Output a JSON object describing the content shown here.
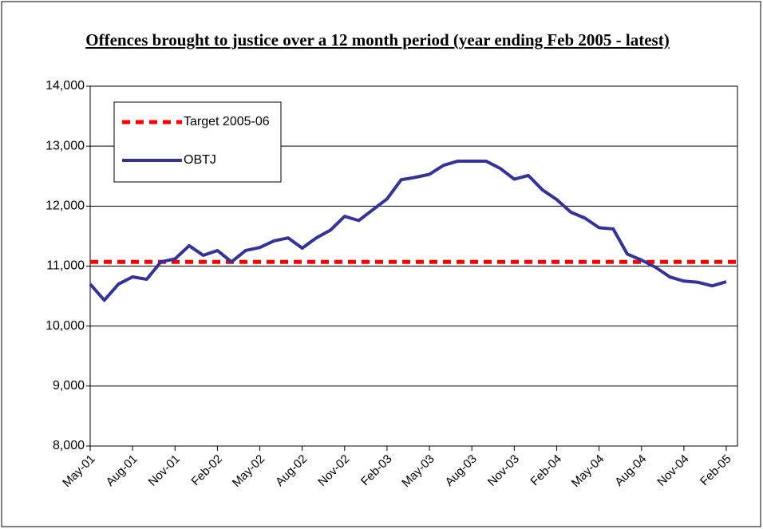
{
  "chart_data": {
    "type": "line",
    "title": "Offences brought to justice over a 12 month period (year ending Feb 2005 - latest)",
    "categories": [
      "May-01",
      null,
      null,
      "Aug-01",
      null,
      null,
      "Nov-01",
      null,
      null,
      "Feb-02",
      null,
      null,
      "May-02",
      null,
      null,
      "Aug-02",
      null,
      null,
      "Nov-02",
      null,
      null,
      "Feb-03",
      null,
      null,
      "May-03",
      null,
      null,
      "Aug-03",
      null,
      null,
      "Nov-03",
      null,
      null,
      "Feb-04",
      null,
      null,
      "May-04",
      null,
      null,
      "Aug-04",
      null,
      null,
      "Nov-04",
      null,
      null,
      "Feb-05"
    ],
    "series": [
      {
        "name": "OBTJ",
        "color": "#333399",
        "values": [
          10700,
          10430,
          10700,
          10820,
          10780,
          11070,
          11120,
          11340,
          11180,
          11260,
          11070,
          11260,
          11310,
          11420,
          11470,
          11300,
          11470,
          11600,
          11830,
          11760,
          11940,
          12120,
          12440,
          12480,
          12530,
          12680,
          12750,
          12750,
          12750,
          12630,
          12450,
          12510,
          12270,
          12110,
          11900,
          11800,
          11640,
          11620,
          11200,
          11100,
          10980,
          10820,
          10750,
          10730,
          10670,
          10740
        ]
      }
    ],
    "target": {
      "name": "Target 2005-06",
      "color": "#ff0000",
      "value": 11070
    },
    "ylim": [
      8000,
      14000
    ],
    "yticks": [
      {
        "value": 8000,
        "label": "8,000"
      },
      {
        "value": 9000,
        "label": "9,000"
      },
      {
        "value": 10000,
        "label": "10,000"
      },
      {
        "value": 11000,
        "label": "11,000"
      },
      {
        "value": 12000,
        "label": "12,000"
      },
      {
        "value": 13000,
        "label": "13,000"
      },
      {
        "value": 14000,
        "label": "14,000"
      }
    ],
    "grid": true
  }
}
